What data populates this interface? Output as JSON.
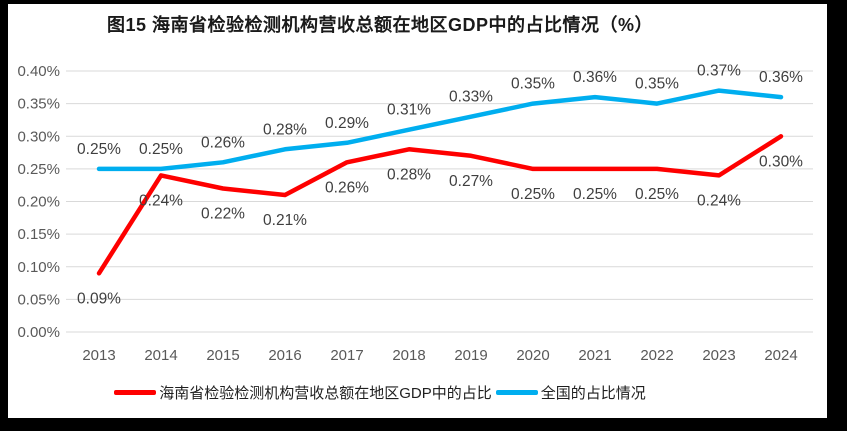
{
  "title": "图15 海南省检验检测机构营收总额在地区GDP中的占比情况（%）",
  "chart_data": {
    "type": "line",
    "categories": [
      "2013",
      "2014",
      "2015",
      "2016",
      "2017",
      "2018",
      "2019",
      "2020",
      "2021",
      "2022",
      "2023",
      "2024"
    ],
    "series": [
      {
        "name": "海南省检验检测机构营收总额在地区GDP中的占比",
        "color": "#fe0000",
        "values": [
          0.09,
          0.24,
          0.22,
          0.21,
          0.26,
          0.28,
          0.27,
          0.25,
          0.25,
          0.25,
          0.24,
          0.3
        ],
        "data_labels": [
          "0.09%",
          "0.24%",
          "0.22%",
          "0.21%",
          "0.26%",
          "0.28%",
          "0.27%",
          "0.25%",
          "0.25%",
          "0.25%",
          "0.24%",
          "0.30%"
        ],
        "label_position": "below"
      },
      {
        "name": "全国的占比情况",
        "color": "#00aeef",
        "values": [
          0.25,
          0.25,
          0.26,
          0.28,
          0.29,
          0.31,
          0.33,
          0.35,
          0.36,
          0.35,
          0.37,
          0.36
        ],
        "data_labels": [
          "0.25%",
          "0.25%",
          "0.26%",
          "0.28%",
          "0.29%",
          "0.31%",
          "0.33%",
          "0.35%",
          "0.36%",
          "0.35%",
          "0.37%",
          "0.36%"
        ],
        "label_position": "above"
      }
    ],
    "xlabel": "",
    "ylabel": "",
    "ylim": [
      0,
      0.4
    ],
    "ytick_labels": [
      "0.00%",
      "0.05%",
      "0.10%",
      "0.15%",
      "0.20%",
      "0.25%",
      "0.30%",
      "0.35%",
      "0.40%"
    ],
    "grid": true,
    "legend_position": "bottom",
    "gridline_color": "#d9d9d9",
    "tick_label_color": "#595959",
    "data_label_color": "#3f3f3f"
  },
  "legend": {
    "items": [
      {
        "label": "海南省检验检测机构营收总额在地区GDP中的占比",
        "color": "#fe0000"
      },
      {
        "label": "全国的占比情况",
        "color": "#00aeef"
      }
    ]
  }
}
